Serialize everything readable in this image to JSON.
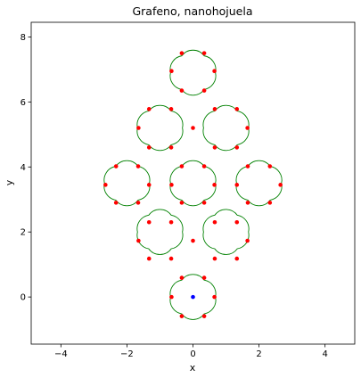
{
  "chart_data": {
    "type": "scatter",
    "title": "Grafeno, nanohojuela",
    "xlabel": "x",
    "ylabel": "y",
    "xlim": [
      -4.9,
      4.9
    ],
    "ylim": [
      -1.45,
      8.45
    ],
    "xticks": [
      -4,
      -2,
      0,
      2,
      4
    ],
    "yticks": [
      0,
      2,
      4,
      6,
      8
    ],
    "grid": false,
    "hexagon_centers": [
      [
        0.0,
        0.0
      ],
      [
        -1.0,
        2.0
      ],
      [
        1.0,
        2.0
      ],
      [
        -2.0,
        3.5
      ],
      [
        0.0,
        3.5
      ],
      [
        2.0,
        3.5
      ],
      [
        -1.0,
        5.2
      ],
      [
        1.0,
        5.2
      ],
      [
        0.0,
        6.9
      ]
    ],
    "series": [
      {
        "type": "arcs",
        "color": "#008000",
        "hexagon_radius": 0.68
      },
      {
        "type": "points",
        "color": "#ff0000",
        "points": [
          [
            -0.34,
            -0.59
          ],
          [
            0.34,
            -0.59
          ],
          [
            -0.65,
            0.0
          ],
          [
            0.65,
            0.0
          ],
          [
            -0.34,
            0.59
          ],
          [
            0.34,
            0.59
          ],
          [
            -1.33,
            1.18
          ],
          [
            -0.66,
            1.18
          ],
          [
            0.66,
            1.18
          ],
          [
            1.33,
            1.18
          ],
          [
            -1.65,
            1.73
          ],
          [
            1.65,
            1.73
          ],
          [
            0.0,
            1.73
          ],
          [
            -1.33,
            2.3
          ],
          [
            -0.66,
            2.3
          ],
          [
            0.66,
            2.3
          ],
          [
            1.33,
            2.3
          ],
          [
            -0.34,
            2.9
          ],
          [
            0.34,
            2.9
          ],
          [
            -1.66,
            2.9
          ],
          [
            1.66,
            2.9
          ],
          [
            -2.33,
            2.9
          ],
          [
            2.33,
            2.9
          ],
          [
            -2.65,
            3.45
          ],
          [
            2.65,
            3.45
          ],
          [
            -1.33,
            3.45
          ],
          [
            1.33,
            3.45
          ],
          [
            -0.65,
            3.45
          ],
          [
            0.65,
            3.45
          ],
          [
            -2.33,
            4.02
          ],
          [
            2.33,
            4.02
          ],
          [
            -1.66,
            4.02
          ],
          [
            1.66,
            4.02
          ],
          [
            -0.34,
            4.02
          ],
          [
            0.34,
            4.02
          ],
          [
            -1.33,
            4.6
          ],
          [
            -0.66,
            4.6
          ],
          [
            0.66,
            4.6
          ],
          [
            1.33,
            4.6
          ],
          [
            -1.65,
            5.2
          ],
          [
            1.65,
            5.2
          ],
          [
            0.0,
            5.2
          ],
          [
            -1.33,
            5.78
          ],
          [
            -0.66,
            5.78
          ],
          [
            0.66,
            5.78
          ],
          [
            1.33,
            5.78
          ],
          [
            -0.34,
            6.35
          ],
          [
            0.34,
            6.35
          ],
          [
            -0.65,
            6.95
          ],
          [
            0.65,
            6.95
          ],
          [
            -0.34,
            7.5
          ],
          [
            0.34,
            7.5
          ]
        ]
      },
      {
        "type": "points",
        "color": "#0000ff",
        "points": [
          [
            0.0,
            0.0
          ]
        ]
      }
    ]
  }
}
